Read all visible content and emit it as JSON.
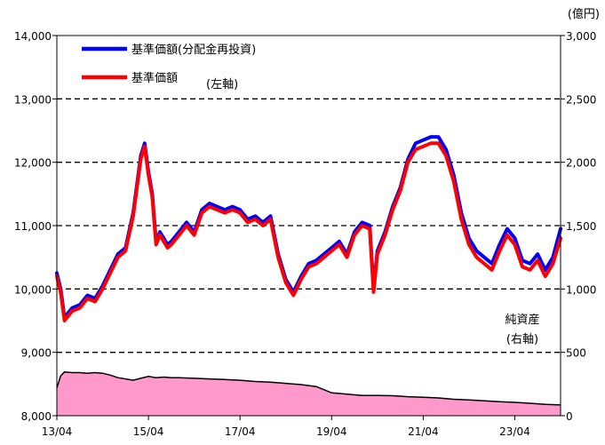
{
  "chart_data": {
    "type": "line",
    "title": "",
    "units": {
      "right": "(億円)"
    },
    "y_left": {
      "ylim": [
        8000,
        14000
      ],
      "ticks": [
        8000,
        9000,
        10000,
        11000,
        12000,
        13000,
        14000
      ],
      "tick_labels": [
        "8,000",
        "9,000",
        "10,000",
        "11,000",
        "12,000",
        "13,000",
        "14,000"
      ]
    },
    "y_right": {
      "ylim": [
        0,
        3000
      ],
      "ticks": [
        0,
        500,
        1000,
        1500,
        2000,
        2500,
        3000
      ],
      "tick_labels": [
        "0",
        "500",
        "1,000",
        "1,500",
        "2,000",
        "2,500",
        "3,000"
      ]
    },
    "x_axis": {
      "range": [
        "2013-04",
        "2024-04"
      ],
      "tick_labels": [
        "13/04",
        "15/04",
        "17/04",
        "19/04",
        "21/04",
        "23/04"
      ],
      "ticks": [
        "2013-04",
        "2015-04",
        "2017-04",
        "2019-04",
        "2021-04",
        "2023-04"
      ]
    },
    "grid": {
      "horizontal_dashed": true
    },
    "legend": {
      "position": "top-left",
      "entries": [
        {
          "label": "基準価額(分配金再投資)",
          "color": "#0000ff"
        },
        {
          "label": "基準価額",
          "color": "#ff0000"
        }
      ],
      "note": "(左軸)"
    },
    "annotations": {
      "net_assets_label": "純資産",
      "net_assets_axis": "(右軸)"
    },
    "series": [
      {
        "name": "基準価額(分配金再投資)",
        "axis": "left",
        "color": "#0000ff",
        "x": [
          "2013-04",
          "2013-05",
          "2013-06",
          "2013-08",
          "2013-10",
          "2013-12",
          "2014-02",
          "2014-04",
          "2014-06",
          "2014-08",
          "2014-10",
          "2014-12",
          "2015-02",
          "2015-03",
          "2015-04",
          "2015-05",
          "2015-06",
          "2015-07",
          "2015-08",
          "2015-09",
          "2015-10",
          "2015-12",
          "2016-02",
          "2016-04",
          "2016-06",
          "2016-08",
          "2016-10",
          "2016-12",
          "2017-02",
          "2017-04",
          "2017-06",
          "2017-08",
          "2017-10",
          "2017-12",
          "2018-02",
          "2018-04",
          "2018-06",
          "2018-08",
          "2018-10",
          "2018-12",
          "2019-02",
          "2019-04",
          "2019-06",
          "2019-08",
          "2019-10",
          "2019-12",
          "2020-02",
          "2020-03",
          "2020-04",
          "2020-06",
          "2020-08",
          "2020-10",
          "2020-12",
          "2021-02",
          "2021-04",
          "2021-06",
          "2021-08",
          "2021-10",
          "2021-12",
          "2022-02",
          "2022-04",
          "2022-06",
          "2022-08",
          "2022-10",
          "2022-12",
          "2023-02",
          "2023-04",
          "2023-06",
          "2023-08",
          "2023-10",
          "2023-12",
          "2024-02",
          "2024-04"
        ],
        "values": [
          10250,
          10000,
          9550,
          9700,
          9750,
          9900,
          9850,
          10050,
          10300,
          10550,
          10650,
          11200,
          12100,
          12300,
          11850,
          11500,
          10750,
          10900,
          10800,
          10700,
          10750,
          10900,
          11050,
          10900,
          11250,
          11350,
          11300,
          11250,
          11300,
          11250,
          11100,
          11150,
          11050,
          11150,
          10550,
          10150,
          9950,
          10200,
          10400,
          10450,
          10550,
          10650,
          10750,
          10550,
          10900,
          11050,
          11000,
          10000,
          10600,
          10900,
          11300,
          11600,
          12050,
          12300,
          12350,
          12400,
          12400,
          12200,
          11800,
          11200,
          10800,
          10600,
          10500,
          10400,
          10700,
          10950,
          10800,
          10450,
          10400,
          10550,
          10300,
          10500,
          10950
        ]
      },
      {
        "name": "基準価額",
        "axis": "left",
        "color": "#ff0000",
        "x": [
          "2013-04",
          "2013-05",
          "2013-06",
          "2013-08",
          "2013-10",
          "2013-12",
          "2014-02",
          "2014-04",
          "2014-06",
          "2014-08",
          "2014-10",
          "2014-12",
          "2015-02",
          "2015-03",
          "2015-04",
          "2015-05",
          "2015-06",
          "2015-07",
          "2015-08",
          "2015-09",
          "2015-10",
          "2015-12",
          "2016-02",
          "2016-04",
          "2016-06",
          "2016-08",
          "2016-10",
          "2016-12",
          "2017-02",
          "2017-04",
          "2017-06",
          "2017-08",
          "2017-10",
          "2017-12",
          "2018-02",
          "2018-04",
          "2018-06",
          "2018-08",
          "2018-10",
          "2018-12",
          "2019-02",
          "2019-04",
          "2019-06",
          "2019-08",
          "2019-10",
          "2019-12",
          "2020-02",
          "2020-03",
          "2020-04",
          "2020-06",
          "2020-08",
          "2020-10",
          "2020-12",
          "2021-02",
          "2021-04",
          "2021-06",
          "2021-08",
          "2021-10",
          "2021-12",
          "2022-02",
          "2022-04",
          "2022-06",
          "2022-08",
          "2022-10",
          "2022-12",
          "2023-02",
          "2023-04",
          "2023-06",
          "2023-08",
          "2023-10",
          "2023-12",
          "2024-02",
          "2024-04"
        ],
        "values": [
          10200,
          9950,
          9500,
          9650,
          9700,
          9850,
          9800,
          10000,
          10250,
          10500,
          10600,
          11150,
          12050,
          12250,
          11800,
          11450,
          10700,
          10850,
          10750,
          10650,
          10700,
          10850,
          11000,
          10850,
          11200,
          11300,
          11250,
          11200,
          11250,
          11200,
          11050,
          11100,
          11000,
          11100,
          10500,
          10100,
          9900,
          10150,
          10350,
          10400,
          10500,
          10600,
          10700,
          10500,
          10850,
          11000,
          10950,
          9950,
          10550,
          10850,
          11250,
          11550,
          12000,
          12200,
          12250,
          12300,
          12300,
          12100,
          11700,
          11100,
          10700,
          10500,
          10400,
          10300,
          10600,
          10850,
          10700,
          10350,
          10300,
          10450,
          10200,
          10400,
          10800
        ]
      },
      {
        "name": "純資産",
        "axis": "right",
        "type": "area",
        "color": "#ff99cc",
        "x": [
          "2013-04",
          "2013-05",
          "2013-06",
          "2013-08",
          "2013-10",
          "2013-12",
          "2014-02",
          "2014-04",
          "2014-06",
          "2014-08",
          "2014-10",
          "2014-12",
          "2015-02",
          "2015-04",
          "2015-06",
          "2015-08",
          "2015-10",
          "2015-12",
          "2016-04",
          "2016-08",
          "2016-12",
          "2017-04",
          "2017-08",
          "2017-12",
          "2018-04",
          "2018-08",
          "2018-12",
          "2019-04",
          "2019-08",
          "2019-12",
          "2020-04",
          "2020-08",
          "2020-12",
          "2021-04",
          "2021-08",
          "2021-12",
          "2022-04",
          "2022-08",
          "2022-12",
          "2023-04",
          "2023-08",
          "2023-12",
          "2024-04"
        ],
        "values": [
          220,
          315,
          345,
          340,
          340,
          335,
          340,
          335,
          320,
          300,
          290,
          280,
          295,
          310,
          300,
          305,
          300,
          300,
          295,
          290,
          285,
          280,
          270,
          265,
          255,
          245,
          230,
          180,
          170,
          160,
          160,
          158,
          150,
          145,
          140,
          130,
          125,
          118,
          110,
          105,
          98,
          90,
          85
        ]
      }
    ]
  }
}
